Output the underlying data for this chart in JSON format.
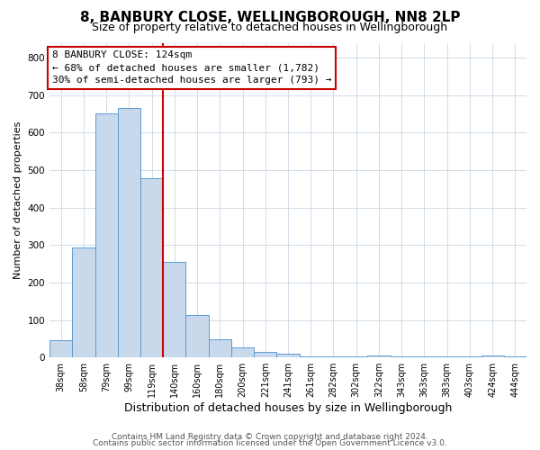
{
  "title": "8, BANBURY CLOSE, WELLINGBOROUGH, NN8 2LP",
  "subtitle": "Size of property relative to detached houses in Wellingborough",
  "xlabel": "Distribution of detached houses by size in Wellingborough",
  "ylabel": "Number of detached properties",
  "bin_labels": [
    "38sqm",
    "58sqm",
    "79sqm",
    "99sqm",
    "119sqm",
    "140sqm",
    "160sqm",
    "180sqm",
    "200sqm",
    "221sqm",
    "241sqm",
    "261sqm",
    "282sqm",
    "302sqm",
    "322sqm",
    "343sqm",
    "363sqm",
    "383sqm",
    "403sqm",
    "424sqm",
    "444sqm"
  ],
  "bar_values": [
    47,
    293,
    651,
    667,
    479,
    254,
    113,
    49,
    27,
    15,
    10,
    3,
    3,
    3,
    5,
    3,
    3,
    3,
    3,
    5,
    3
  ],
  "bar_color": "#c8d9eb",
  "bar_edge_color": "#5b9bd5",
  "vline_x_index": 4,
  "vline_color": "#cc0000",
  "annotation_line1": "8 BANBURY CLOSE: 124sqm",
  "annotation_line2": "← 68% of detached houses are smaller (1,782)",
  "annotation_line3": "30% of semi-detached houses are larger (793) →",
  "box_edge_color": "#cc0000",
  "ylim": [
    0,
    840
  ],
  "yticks": [
    0,
    100,
    200,
    300,
    400,
    500,
    600,
    700,
    800
  ],
  "footer_line1": "Contains HM Land Registry data © Crown copyright and database right 2024.",
  "footer_line2": "Contains public sector information licensed under the Open Government Licence v3.0.",
  "background_color": "#ffffff",
  "grid_color": "#d0dce8",
  "title_fontsize": 11,
  "subtitle_fontsize": 9,
  "xlabel_fontsize": 9,
  "ylabel_fontsize": 8,
  "annotation_fontsize": 8,
  "footer_fontsize": 6.5
}
